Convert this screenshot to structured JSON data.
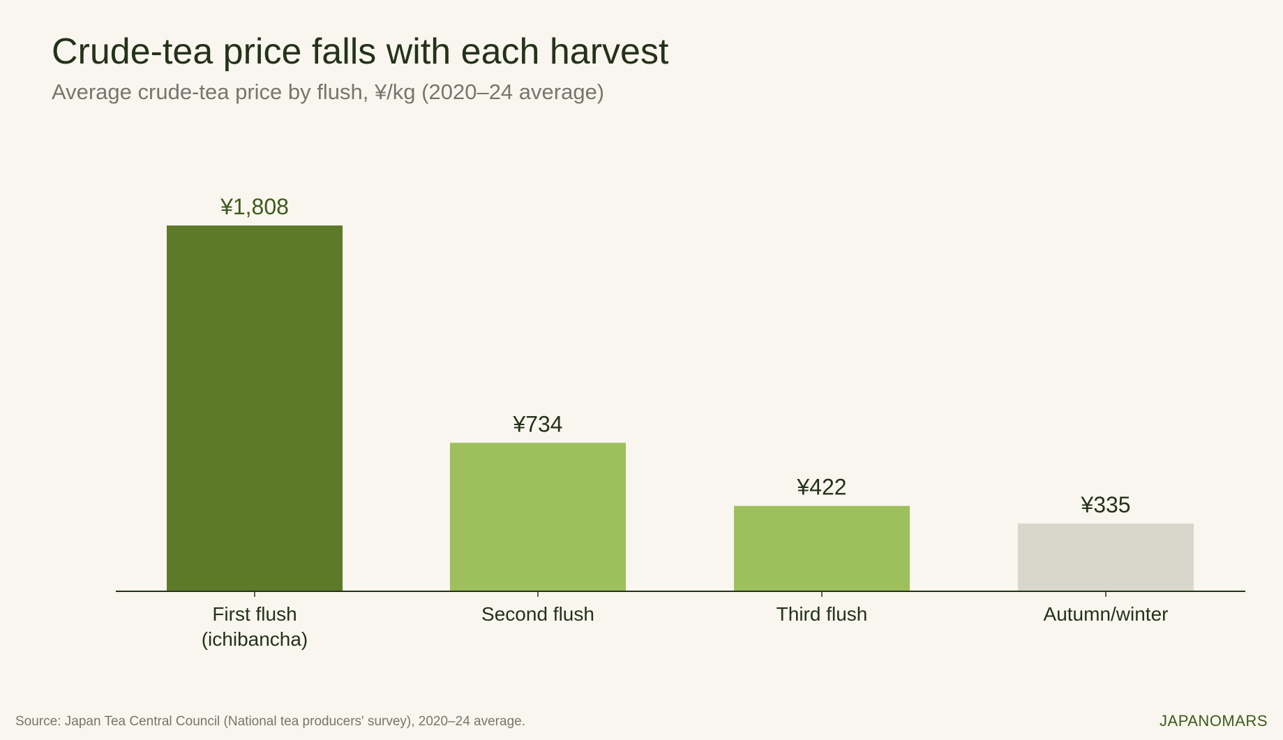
{
  "title": "Crude-tea price falls with each harvest",
  "subtitle": "Average crude-tea price by flush, ¥/kg (2020–24 average)",
  "source": "Source: Japan Tea Central Council (National tea producers' survey), 2020–24 average.",
  "brand": "JAPANOMARS",
  "chart_data": {
    "type": "bar",
    "title": "Crude-tea price falls with each harvest",
    "subtitle": "Average crude-tea price by flush, ¥/kg (2020–24 average)",
    "categories": [
      [
        "First flush",
        "(ichibancha)"
      ],
      [
        "Second flush"
      ],
      [
        "Third flush"
      ],
      [
        "Autumn/winter"
      ]
    ],
    "values": [
      1808,
      734,
      422,
      335
    ],
    "value_labels": [
      "¥1,808",
      "¥734",
      "¥422",
      "¥335"
    ],
    "bar_colors": [
      "#5d7a2a",
      "#9dbf5c",
      "#9dbf5c",
      "#d9d7cb"
    ],
    "label_colors": [
      "#3d5a1c",
      "#24321a",
      "#24321a",
      "#24321a"
    ],
    "ylim": [
      0,
      1808
    ],
    "grid": false,
    "y_axis_visible": false,
    "axis_color": "#24321a",
    "tick_label_color": "#24321a"
  }
}
